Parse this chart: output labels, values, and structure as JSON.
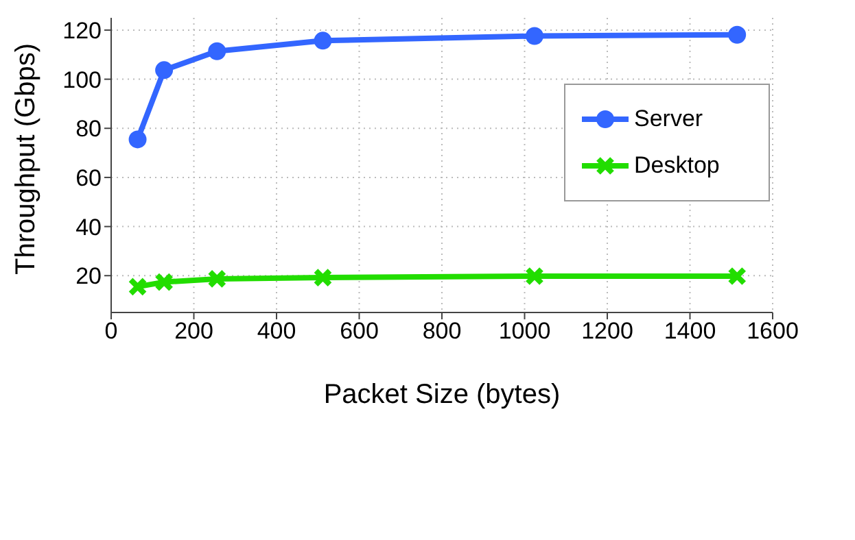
{
  "chart_data": {
    "type": "line",
    "xlabel": "Packet Size (bytes)",
    "ylabel": "Throughput (Gbps)",
    "x": [
      64,
      128,
      256,
      512,
      1024,
      1514
    ],
    "series": [
      {
        "name": "Server",
        "color": "#3366ff",
        "marker": "circle",
        "values": [
          75.5,
          103.7,
          111.4,
          115.7,
          117.6,
          118.1
        ]
      },
      {
        "name": "Desktop",
        "color": "#22dd00",
        "marker": "cross",
        "values": [
          15.5,
          17.4,
          18.7,
          19.2,
          19.8,
          19.8
        ]
      }
    ],
    "xlim": [
      0,
      1600
    ],
    "xticks": [
      0,
      200,
      400,
      600,
      800,
      1000,
      1200,
      1400,
      1600
    ],
    "ylim": [
      5,
      125
    ],
    "yticks": [
      20,
      40,
      60,
      80,
      100,
      120
    ],
    "grid": true,
    "legend": "top right",
    "line_style": "solid"
  }
}
